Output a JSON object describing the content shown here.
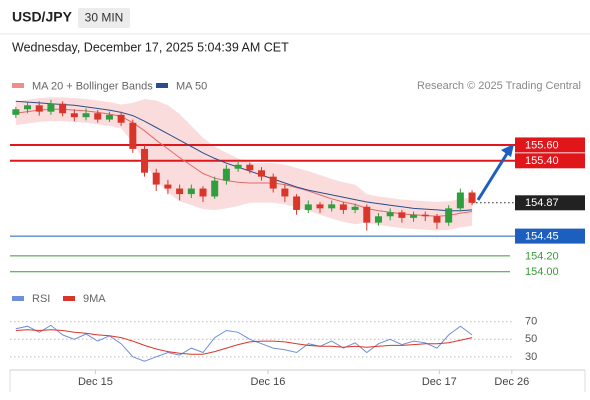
{
  "header": {
    "symbol": "USD/JPY",
    "interval": "30 MIN",
    "datetime": "Wednesday, December 17, 2025 5:04:39 AM CET"
  },
  "chart_data": [
    {
      "type": "candlestick",
      "source": "Research © 2025 Trading Central",
      "ylim": [
        153.77,
        156.23
      ],
      "xlim": [
        -0.5,
        42.5
      ],
      "up_color": "#2e9e3e",
      "down_color": "#d9362b",
      "open": [
        155.98,
        156.05,
        156.1,
        156.02,
        156.12,
        156.0,
        155.95,
        156.0,
        155.92,
        155.98,
        155.88,
        155.55,
        155.25,
        155.1,
        155.05,
        154.98,
        155.05,
        154.95,
        155.15,
        155.3,
        155.35,
        155.28,
        155.2,
        155.05,
        154.95,
        154.78,
        154.85,
        154.8,
        154.85,
        154.78,
        154.82,
        154.62,
        154.7,
        154.75,
        154.68,
        154.72,
        154.7,
        154.62,
        154.8,
        155.0
      ],
      "high": [
        156.08,
        156.14,
        156.15,
        156.17,
        156.15,
        156.05,
        156.06,
        156.04,
        156.02,
        156.02,
        155.92,
        155.6,
        155.3,
        155.16,
        155.1,
        155.1,
        155.08,
        155.2,
        155.35,
        155.4,
        155.38,
        155.32,
        155.24,
        155.1,
        154.98,
        154.9,
        154.88,
        154.9,
        154.88,
        154.86,
        154.85,
        154.74,
        154.8,
        154.78,
        154.76,
        154.76,
        154.73,
        154.84,
        155.05,
        155.03
      ],
      "low": [
        155.94,
        156.0,
        155.97,
        155.98,
        155.96,
        155.9,
        155.91,
        155.88,
        155.89,
        155.84,
        155.5,
        155.2,
        155.02,
        154.98,
        154.9,
        154.93,
        154.88,
        154.92,
        155.1,
        155.26,
        155.24,
        155.15,
        155.0,
        154.88,
        154.72,
        154.74,
        154.74,
        154.76,
        154.73,
        154.74,
        154.52,
        154.58,
        154.65,
        154.62,
        154.63,
        154.64,
        154.54,
        154.58,
        154.76,
        154.84
      ],
      "close": [
        156.05,
        156.1,
        156.02,
        156.12,
        156.0,
        155.95,
        156.0,
        155.92,
        155.98,
        155.88,
        155.55,
        155.25,
        155.1,
        155.05,
        154.98,
        155.05,
        154.95,
        155.15,
        155.3,
        155.35,
        155.28,
        155.2,
        155.05,
        154.95,
        154.78,
        154.85,
        154.8,
        154.85,
        154.78,
        154.82,
        154.62,
        154.7,
        154.75,
        154.68,
        154.72,
        154.7,
        154.62,
        154.8,
        155.0,
        154.87
      ],
      "series": [
        {
          "name": "MA 20 + Bollinger Bands",
          "color": "#f08c8c",
          "values": [
            156.0,
            156.02,
            156.04,
            156.05,
            156.05,
            156.04,
            156.03,
            156.01,
            155.99,
            155.96,
            155.88,
            155.78,
            155.66,
            155.55,
            155.44,
            155.34,
            155.24,
            155.18,
            155.15,
            155.13,
            155.12,
            155.12,
            155.12,
            155.1,
            155.06,
            155.02,
            154.97,
            154.92,
            154.88,
            154.85,
            154.8,
            154.77,
            154.75,
            154.73,
            154.72,
            154.71,
            154.7,
            154.71,
            154.74,
            154.76
          ],
          "upper": [
            156.15,
            156.17,
            156.19,
            156.2,
            156.2,
            156.19,
            156.18,
            156.16,
            156.14,
            156.11,
            156.13,
            156.18,
            156.16,
            156.1,
            155.99,
            155.84,
            155.69,
            155.58,
            155.5,
            155.43,
            155.37,
            155.37,
            155.37,
            155.35,
            155.31,
            155.27,
            155.22,
            155.17,
            155.13,
            155.1,
            154.98,
            154.95,
            154.93,
            154.91,
            154.9,
            154.89,
            154.88,
            154.89,
            154.92,
            154.94
          ],
          "lower": [
            155.85,
            155.87,
            155.89,
            155.9,
            155.9,
            155.89,
            155.88,
            155.86,
            155.84,
            155.81,
            155.63,
            155.38,
            155.16,
            155.0,
            154.89,
            154.84,
            154.79,
            154.78,
            154.8,
            154.83,
            154.87,
            154.87,
            154.87,
            154.85,
            154.81,
            154.77,
            154.72,
            154.67,
            154.63,
            154.6,
            154.62,
            154.59,
            154.57,
            154.55,
            154.54,
            154.53,
            154.52,
            154.53,
            154.56,
            154.58
          ]
        },
        {
          "name": "MA 50",
          "color": "#2b4f8c",
          "values": [
            156.15,
            156.14,
            156.13,
            156.12,
            156.11,
            156.1,
            156.08,
            156.06,
            156.04,
            156.01,
            155.97,
            155.9,
            155.82,
            155.74,
            155.66,
            155.58,
            155.5,
            155.43,
            155.37,
            155.32,
            155.27,
            155.22,
            155.17,
            155.12,
            155.07,
            155.03,
            155.0,
            154.97,
            154.94,
            154.91,
            154.88,
            154.86,
            154.84,
            154.82,
            154.8,
            154.79,
            154.78,
            154.77,
            154.77,
            154.78
          ]
        }
      ],
      "levels": [
        {
          "value": 155.6,
          "label": "155.60",
          "color": "#e0161b",
          "boxed": true
        },
        {
          "value": 155.4,
          "label": "155.40",
          "color": "#e0161b",
          "boxed": true
        },
        {
          "value": 154.87,
          "label": "154.87",
          "color": "#222222",
          "boxed": true,
          "dotted": true
        },
        {
          "value": 154.45,
          "label": "154.45",
          "color": "#1d5fbf",
          "boxed": true
        },
        {
          "value": 154.2,
          "label": "154.20",
          "color": "#3a9a3a",
          "boxed": false
        },
        {
          "value": 154,
          "label": "154.00",
          "color": "#3a9a3a",
          "boxed": false
        }
      ]
    },
    {
      "type": "line",
      "ylim": [
        15,
        80
      ],
      "yticks": [
        30,
        50,
        70
      ],
      "xlim": [
        -0.5,
        42.5
      ],
      "xticks": [
        {
          "value": 6.8,
          "label": "Dec 15"
        },
        {
          "value": 21.55,
          "label": "Dec 16"
        },
        {
          "value": 36.2,
          "label": "Dec 17"
        },
        {
          "value": 42.4,
          "label": "Dec 26"
        }
      ],
      "series": [
        {
          "name": "RSI",
          "color": "#6f8fd8",
          "values": [
            62,
            65,
            58,
            66,
            55,
            50,
            56,
            48,
            54,
            45,
            30,
            25,
            30,
            35,
            32,
            40,
            35,
            52,
            60,
            58,
            50,
            45,
            40,
            38,
            35,
            45,
            42,
            48,
            40,
            46,
            35,
            45,
            50,
            44,
            48,
            46,
            40,
            55,
            65,
            55
          ]
        },
        {
          "name": "9MA",
          "color": "#d9362b",
          "values": [
            60,
            61,
            60,
            61,
            60,
            58,
            57,
            55,
            54,
            52,
            48,
            43,
            39,
            36,
            34,
            33,
            33,
            36,
            40,
            44,
            47,
            48,
            48,
            47,
            45,
            43,
            42,
            42,
            41,
            42,
            41,
            42,
            43,
            43,
            44,
            45,
            45,
            46,
            49,
            52
          ]
        }
      ]
    }
  ]
}
